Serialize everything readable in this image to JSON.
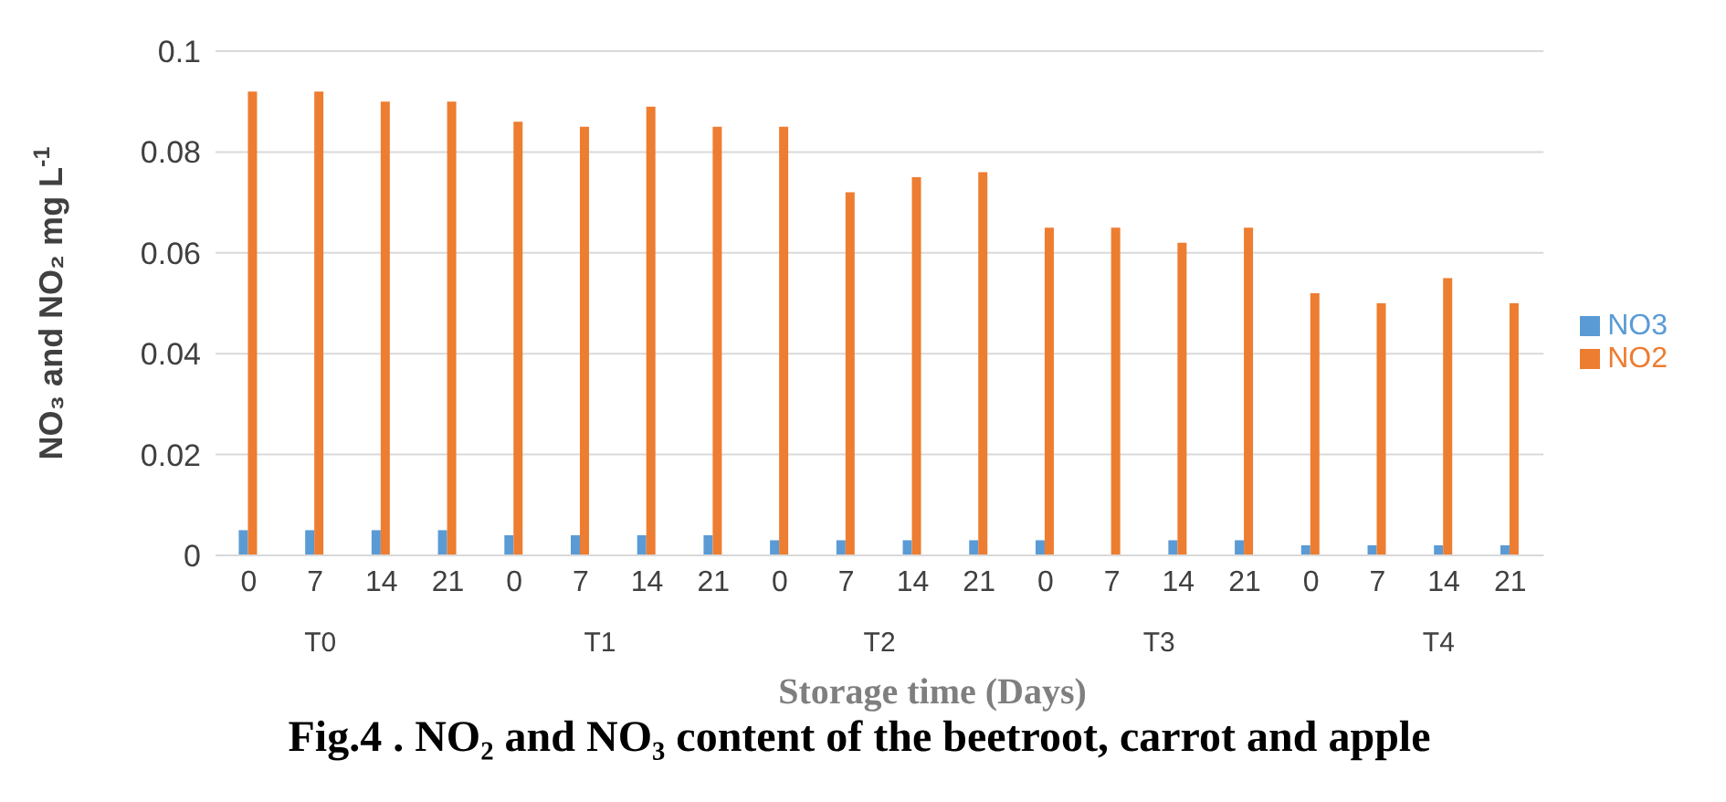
{
  "chart_data": {
    "type": "bar",
    "title": "Fig.4 . NO₂ and NO₃ content of the beetroot, carrot and apple",
    "xlabel": "Storage time (Days)",
    "ylabel": "NO₃ and NO₂  mg L$^{-1}$",
    "categories": [
      "0",
      "7",
      "14",
      "21",
      "0",
      "7",
      "14",
      "21",
      "0",
      "7",
      "14",
      "21",
      "0",
      "7",
      "14",
      "21",
      "0",
      "7",
      "14",
      "21"
    ],
    "annotations": [
      "T0",
      "T1",
      "T2",
      "T3",
      "T4"
    ],
    "series": [
      {
        "name": "NO3",
        "color": "#5b9bd5",
        "values": [
          0.005,
          0.005,
          0.005,
          0.005,
          0.004,
          0.004,
          0.004,
          0.004,
          0.003,
          0.003,
          0.003,
          0.003,
          0.003,
          0,
          0.003,
          0.003,
          0.002,
          0.002,
          0.002,
          0.002
        ]
      },
      {
        "name": "NO2",
        "color": "#ed7d31",
        "values": [
          0.092,
          0.092,
          0.09,
          0.09,
          0.086,
          0.085,
          0.089,
          0.085,
          0.085,
          0.072,
          0.075,
          0.076,
          0.065,
          0.065,
          0.062,
          0.065,
          0.052,
          0.05,
          0.055,
          0.05
        ]
      }
    ],
    "ylim": [
      0,
      0.1
    ],
    "yticks": [
      0,
      0.02,
      0.04,
      0.06,
      0.08,
      0.1
    ],
    "grid": "y",
    "legend": "right"
  }
}
